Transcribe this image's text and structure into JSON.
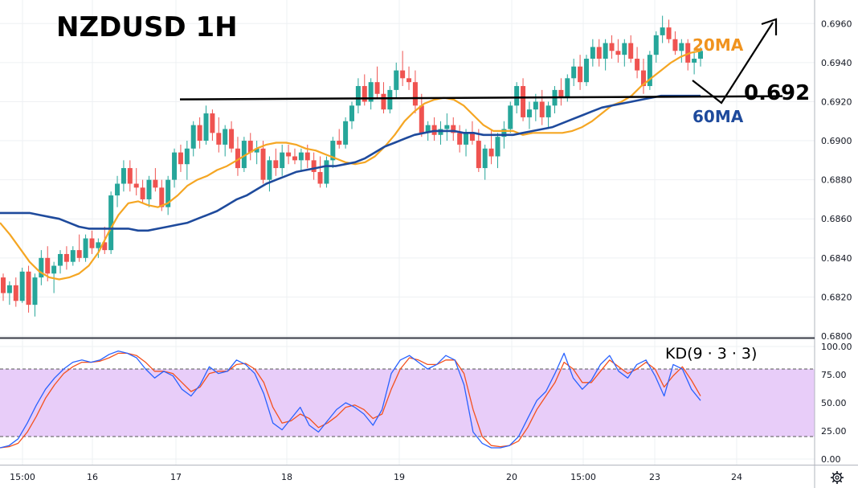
{
  "title": "NZDUSD 1H",
  "colors": {
    "bull": "#26a69a",
    "bear": "#ef5350",
    "ma20": "#f5a623",
    "ma60": "#1e4a9c",
    "k_line": "#2962ff",
    "d_line": "#f4511e",
    "kd_band": "#e8cdf9",
    "level_line": "#000000"
  },
  "chart_data": [
    {
      "type": "candlestick",
      "title": "NZDUSD 1H",
      "symbol": "NZDUSD",
      "timeframe": "1H",
      "ylim": [
        0.68,
        0.697
      ],
      "y_ticks": [
        "0.6800",
        "0.6820",
        "0.6840",
        "0.6860",
        "0.6880",
        "0.6900",
        "0.6920",
        "0.6940",
        "0.6960"
      ],
      "x_tick_labels": [
        "15:00",
        "16",
        "17",
        "18",
        "19",
        "20",
        "15:00",
        "23",
        "24"
      ],
      "series": [
        {
          "name": "20MA",
          "values": [
            0.6858,
            0.6852,
            0.6845,
            0.6838,
            0.6833,
            0.683,
            0.6829,
            0.683,
            0.6832,
            0.6836,
            0.6843,
            0.6853,
            0.6862,
            0.6868,
            0.6869,
            0.6867,
            0.6866,
            0.6868,
            0.6872,
            0.6877,
            0.688,
            0.6882,
            0.6885,
            0.6887,
            0.689,
            0.6893,
            0.6896,
            0.6898,
            0.6899,
            0.6899,
            0.6898,
            0.6896,
            0.6895,
            0.6893,
            0.6891,
            0.6889,
            0.6888,
            0.6889,
            0.6892,
            0.6897,
            0.6903,
            0.691,
            0.6915,
            0.6919,
            0.6921,
            0.6922,
            0.6921,
            0.6918,
            0.6913,
            0.6908,
            0.6905,
            0.6905,
            0.6905,
            0.6903,
            0.6904,
            0.6904,
            0.6904,
            0.6904,
            0.6905,
            0.6907,
            0.691,
            0.6914,
            0.6918,
            0.692,
            0.6923,
            0.6928,
            0.6932,
            0.6936,
            0.694,
            0.6943,
            0.6945,
            0.6946
          ]
        },
        {
          "name": "60MA",
          "values": [
            0.6863,
            0.6863,
            0.6863,
            0.6863,
            0.6862,
            0.6861,
            0.686,
            0.6858,
            0.6856,
            0.6855,
            0.6855,
            0.6855,
            0.6855,
            0.6855,
            0.6854,
            0.6854,
            0.6855,
            0.6856,
            0.6857,
            0.6858,
            0.686,
            0.6862,
            0.6864,
            0.6867,
            0.687,
            0.6872,
            0.6875,
            0.6878,
            0.688,
            0.6882,
            0.6884,
            0.6885,
            0.6886,
            0.6887,
            0.6887,
            0.6888,
            0.6889,
            0.6891,
            0.6894,
            0.6897,
            0.6899,
            0.6901,
            0.6903,
            0.6904,
            0.6905,
            0.6905,
            0.6905,
            0.6904,
            0.6904,
            0.6903,
            0.6903,
            0.6903,
            0.6903,
            0.6904,
            0.6905,
            0.6906,
            0.6907,
            0.6909,
            0.6911,
            0.6913,
            0.6915,
            0.6917,
            0.6918,
            0.6919,
            0.692,
            0.6921,
            0.6922,
            0.6923,
            0.6923,
            0.6923,
            0.6923,
            0.6923
          ]
        }
      ],
      "candles": [
        [
          0.683,
          0.6832,
          0.6818,
          0.6822
        ],
        [
          0.6822,
          0.6828,
          0.6816,
          0.6826
        ],
        [
          0.6826,
          0.683,
          0.6815,
          0.6818
        ],
        [
          0.6818,
          0.6835,
          0.6817,
          0.6833
        ],
        [
          0.6833,
          0.6836,
          0.6812,
          0.6816
        ],
        [
          0.6816,
          0.6832,
          0.681,
          0.683
        ],
        [
          0.683,
          0.6844,
          0.6826,
          0.684
        ],
        [
          0.684,
          0.6846,
          0.6828,
          0.6832
        ],
        [
          0.6832,
          0.6838,
          0.6822,
          0.6836
        ],
        [
          0.6836,
          0.6844,
          0.6832,
          0.6842
        ],
        [
          0.6842,
          0.6846,
          0.6834,
          0.6838
        ],
        [
          0.6838,
          0.6846,
          0.6836,
          0.6844
        ],
        [
          0.6844,
          0.6852,
          0.6838,
          0.684
        ],
        [
          0.684,
          0.6852,
          0.6838,
          0.685
        ],
        [
          0.685,
          0.6854,
          0.6842,
          0.6845
        ],
        [
          0.6845,
          0.685,
          0.684,
          0.6848
        ],
        [
          0.6848,
          0.6856,
          0.6842,
          0.6844
        ],
        [
          0.6844,
          0.6874,
          0.6842,
          0.6872
        ],
        [
          0.6872,
          0.6882,
          0.6866,
          0.6878
        ],
        [
          0.6878,
          0.689,
          0.6874,
          0.6886
        ],
        [
          0.6886,
          0.689,
          0.6874,
          0.6878
        ],
        [
          0.6878,
          0.6886,
          0.6872,
          0.6876
        ],
        [
          0.6876,
          0.688,
          0.6868,
          0.687
        ],
        [
          0.687,
          0.6882,
          0.6866,
          0.688
        ],
        [
          0.688,
          0.6886,
          0.6874,
          0.6876
        ],
        [
          0.6876,
          0.688,
          0.6864,
          0.6866
        ],
        [
          0.6866,
          0.6882,
          0.6862,
          0.688
        ],
        [
          0.688,
          0.6896,
          0.6876,
          0.6894
        ],
        [
          0.6894,
          0.6898,
          0.6884,
          0.6888
        ],
        [
          0.6888,
          0.69,
          0.688,
          0.6896
        ],
        [
          0.6896,
          0.691,
          0.6892,
          0.6908
        ],
        [
          0.6908,
          0.6912,
          0.6896,
          0.69
        ],
        [
          0.69,
          0.6918,
          0.6898,
          0.6914
        ],
        [
          0.6914,
          0.6916,
          0.69,
          0.6904
        ],
        [
          0.6904,
          0.6912,
          0.6894,
          0.6898
        ],
        [
          0.6898,
          0.6908,
          0.6892,
          0.6906
        ],
        [
          0.6906,
          0.691,
          0.6894,
          0.6896
        ],
        [
          0.6896,
          0.6902,
          0.6882,
          0.6886
        ],
        [
          0.6886,
          0.6902,
          0.6884,
          0.69
        ],
        [
          0.69,
          0.6904,
          0.689,
          0.6894
        ],
        [
          0.6894,
          0.69,
          0.6888,
          0.6896
        ],
        [
          0.6896,
          0.69,
          0.6878,
          0.688
        ],
        [
          0.688,
          0.6892,
          0.6874,
          0.689
        ],
        [
          0.689,
          0.6896,
          0.6882,
          0.6886
        ],
        [
          0.6886,
          0.6898,
          0.6882,
          0.6894
        ],
        [
          0.6894,
          0.6898,
          0.6888,
          0.6892
        ],
        [
          0.6892,
          0.6896,
          0.6888,
          0.689
        ],
        [
          0.689,
          0.6896,
          0.6884,
          0.6894
        ],
        [
          0.6894,
          0.6898,
          0.6886,
          0.689
        ],
        [
          0.689,
          0.6894,
          0.688,
          0.6884
        ],
        [
          0.6884,
          0.6892,
          0.6876,
          0.6878
        ],
        [
          0.6878,
          0.6892,
          0.6876,
          0.689
        ],
        [
          0.689,
          0.6902,
          0.6886,
          0.69
        ],
        [
          0.69,
          0.6906,
          0.6896,
          0.6898
        ],
        [
          0.6898,
          0.6912,
          0.6896,
          0.691
        ],
        [
          0.691,
          0.692,
          0.6906,
          0.6918
        ],
        [
          0.6918,
          0.6932,
          0.6914,
          0.6928
        ],
        [
          0.6928,
          0.6934,
          0.6918,
          0.692
        ],
        [
          0.692,
          0.6932,
          0.6916,
          0.693
        ],
        [
          0.693,
          0.6938,
          0.6922,
          0.6924
        ],
        [
          0.6924,
          0.693,
          0.6914,
          0.6916
        ],
        [
          0.6916,
          0.6928,
          0.6914,
          0.6926
        ],
        [
          0.6926,
          0.694,
          0.6922,
          0.6936
        ],
        [
          0.6936,
          0.6946,
          0.6928,
          0.6932
        ],
        [
          0.6932,
          0.6938,
          0.6926,
          0.693
        ],
        [
          0.693,
          0.6936,
          0.6914,
          0.6918
        ],
        [
          0.6918,
          0.6924,
          0.6902,
          0.6904
        ],
        [
          0.6904,
          0.691,
          0.69,
          0.6908
        ],
        [
          0.6908,
          0.6912,
          0.69,
          0.6903
        ],
        [
          0.6903,
          0.691,
          0.6898,
          0.6906
        ],
        [
          0.6906,
          0.6914,
          0.69,
          0.6908
        ],
        [
          0.6908,
          0.6912,
          0.69,
          0.6904
        ],
        [
          0.6904,
          0.6908,
          0.6894,
          0.6898
        ],
        [
          0.6898,
          0.6906,
          0.6892,
          0.6904
        ],
        [
          0.6904,
          0.691,
          0.6898,
          0.69
        ],
        [
          0.69,
          0.6906,
          0.6884,
          0.6886
        ],
        [
          0.6886,
          0.6898,
          0.688,
          0.6896
        ],
        [
          0.6896,
          0.6906,
          0.6888,
          0.6892
        ],
        [
          0.6892,
          0.6904,
          0.6886,
          0.6902
        ],
        [
          0.6902,
          0.691,
          0.6896,
          0.6906
        ],
        [
          0.6906,
          0.692,
          0.6904,
          0.6918
        ],
        [
          0.6918,
          0.693,
          0.6914,
          0.6928
        ],
        [
          0.6928,
          0.6932,
          0.691,
          0.6912
        ],
        [
          0.6912,
          0.692,
          0.6906,
          0.6916
        ],
        [
          0.6916,
          0.6924,
          0.691,
          0.692
        ],
        [
          0.692,
          0.6926,
          0.6908,
          0.6912
        ],
        [
          0.6912,
          0.692,
          0.6906,
          0.6918
        ],
        [
          0.6918,
          0.6928,
          0.6914,
          0.6926
        ],
        [
          0.6926,
          0.6932,
          0.6918,
          0.6922
        ],
        [
          0.6922,
          0.6934,
          0.692,
          0.6932
        ],
        [
          0.6932,
          0.6942,
          0.6928,
          0.6938
        ],
        [
          0.6938,
          0.6944,
          0.6926,
          0.693
        ],
        [
          0.693,
          0.6944,
          0.6928,
          0.6942
        ],
        [
          0.6942,
          0.6952,
          0.6938,
          0.6948
        ],
        [
          0.6948,
          0.6952,
          0.6938,
          0.6942
        ],
        [
          0.6942,
          0.6952,
          0.6936,
          0.695
        ],
        [
          0.695,
          0.6954,
          0.6942,
          0.6946
        ],
        [
          0.6946,
          0.6952,
          0.694,
          0.6944
        ],
        [
          0.6944,
          0.6952,
          0.6938,
          0.695
        ],
        [
          0.695,
          0.6954,
          0.694,
          0.6942
        ],
        [
          0.6942,
          0.6948,
          0.6932,
          0.6936
        ],
        [
          0.6936,
          0.6942,
          0.6924,
          0.6928
        ],
        [
          0.6928,
          0.6946,
          0.6926,
          0.6944
        ],
        [
          0.6944,
          0.6956,
          0.694,
          0.6954
        ],
        [
          0.6954,
          0.6964,
          0.695,
          0.6958
        ],
        [
          0.6958,
          0.6962,
          0.695,
          0.6952
        ],
        [
          0.6952,
          0.6956,
          0.6944,
          0.6946
        ],
        [
          0.6946,
          0.6952,
          0.694,
          0.695
        ],
        [
          0.695,
          0.6952,
          0.6936,
          0.694
        ],
        [
          0.694,
          0.6946,
          0.6934,
          0.6942
        ],
        [
          0.6942,
          0.6948,
          0.6938,
          0.6946
        ]
      ],
      "annotations": {
        "ma20_label": "20MA",
        "ma60_label": "60MA",
        "level_label": "0.692",
        "level_value": 0.6922
      }
    },
    {
      "type": "line",
      "title": "KD(9 · 3 · 3)",
      "ylim": [
        -5,
        105
      ],
      "y_ticks": [
        "0.00",
        "25.00",
        "50.00",
        "75.00",
        "100.00"
      ],
      "bands": [
        20,
        80
      ],
      "series": [
        {
          "name": "K",
          "values": [
            10,
            12,
            18,
            32,
            48,
            62,
            72,
            80,
            86,
            88,
            86,
            88,
            93,
            96,
            94,
            90,
            80,
            72,
            78,
            74,
            62,
            56,
            66,
            82,
            76,
            78,
            88,
            84,
            76,
            58,
            32,
            26,
            36,
            46,
            30,
            24,
            34,
            44,
            50,
            46,
            40,
            30,
            44,
            76,
            88,
            92,
            86,
            80,
            84,
            92,
            88,
            66,
            24,
            14,
            10,
            10,
            12,
            20,
            36,
            52,
            60,
            76,
            94,
            72,
            62,
            70,
            84,
            92,
            78,
            72,
            84,
            88,
            74,
            56,
            84,
            80,
            62,
            52
          ]
        },
        {
          "name": "D",
          "values": [
            10,
            11,
            14,
            24,
            38,
            54,
            66,
            76,
            82,
            86,
            86,
            87,
            90,
            94,
            94,
            92,
            86,
            78,
            78,
            76,
            68,
            60,
            64,
            76,
            78,
            78,
            84,
            85,
            80,
            68,
            46,
            32,
            34,
            40,
            36,
            28,
            32,
            38,
            46,
            48,
            44,
            36,
            40,
            62,
            80,
            90,
            88,
            84,
            84,
            88,
            88,
            76,
            44,
            20,
            12,
            11,
            12,
            16,
            28,
            44,
            56,
            68,
            86,
            80,
            68,
            68,
            78,
            88,
            82,
            76,
            80,
            86,
            80,
            64,
            74,
            82,
            70,
            56
          ]
        }
      ]
    }
  ]
}
